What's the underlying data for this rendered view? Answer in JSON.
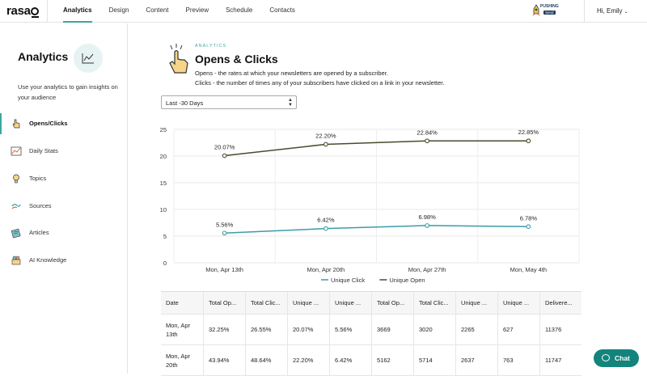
{
  "app": {
    "logo": "rasa"
  },
  "topnav": {
    "items": [
      "Analytics",
      "Design",
      "Content",
      "Preview",
      "Schedule",
      "Contacts"
    ],
    "active": "Analytics",
    "badge_line1": "PUSHING",
    "badge_line2": "Send",
    "greeting": "Hi, Emily"
  },
  "sidebar": {
    "title": "Analytics",
    "description": "Use your analytics to gain insights on your audience",
    "items": [
      {
        "label": "Opens/Clicks",
        "icon": "hand-pointer-icon",
        "active": true
      },
      {
        "label": "Daily Stats",
        "icon": "daily-stats-icon",
        "active": false
      },
      {
        "label": "Topics",
        "icon": "lightbulb-icon",
        "active": false
      },
      {
        "label": "Sources",
        "icon": "sources-icon",
        "active": false
      },
      {
        "label": "Articles",
        "icon": "articles-icon",
        "active": false
      },
      {
        "label": "AI Knowledge",
        "icon": "ai-knowledge-icon",
        "active": false
      }
    ]
  },
  "main": {
    "kicker": "ANALYTICS",
    "title": "Opens & Clicks",
    "desc_opens": "Opens - the rates at which your newsletters are opened by a subscriber.",
    "desc_clicks": "Clicks - the number of times any of your subscribers have clicked on a link in your newsletter.",
    "range_select": "Last -30 Days"
  },
  "chart_data": {
    "type": "line",
    "categories": [
      "Mon, Apr 13th",
      "Mon, Apr 20th",
      "Mon, Apr 27th",
      "Mon, May 4th"
    ],
    "series": [
      {
        "name": "Unique Click",
        "values": [
          5.56,
          6.42,
          6.98,
          6.78
        ],
        "labels": [
          "5.56%",
          "6.42%",
          "6.98%",
          "6.78%"
        ],
        "color": "#3a9ea5"
      },
      {
        "name": "Unique Open",
        "values": [
          20.07,
          22.2,
          22.84,
          22.85
        ],
        "labels": [
          "20.07%",
          "22.20%",
          "22.84%",
          "22.85%"
        ],
        "color": "#4b4a2c"
      }
    ],
    "yticks": [
      0,
      5,
      10,
      15,
      20,
      25
    ],
    "ylim": [
      0,
      25
    ],
    "grid": true,
    "legend": "bottom-center"
  },
  "table": {
    "headers": [
      "Date",
      "Total Op...",
      "Total Clic...",
      "Unique ...",
      "Unique ...",
      "Total Op...",
      "Total Clic...",
      "Unique ...",
      "Unique ...",
      "Delivere..."
    ],
    "rows": [
      [
        "Mon, Apr 13th",
        "32.25%",
        "26.55%",
        "20.07%",
        "5.56%",
        "3669",
        "3020",
        "2265",
        "627",
        "11376"
      ],
      [
        "Mon, Apr 20th",
        "43.94%",
        "48.64%",
        "22.20%",
        "6.42%",
        "5162",
        "5714",
        "2637",
        "763",
        "11747"
      ]
    ]
  },
  "chat": {
    "label": "Chat"
  }
}
